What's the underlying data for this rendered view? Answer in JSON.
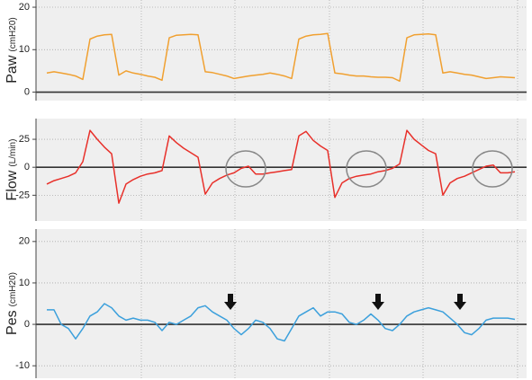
{
  "chart_data": [
    {
      "type": "line",
      "ylabel": "Paw",
      "yunit": "(cmH20)",
      "ylim": [
        -2,
        21.7
      ],
      "yticks": [
        0,
        10,
        20
      ],
      "grid": true,
      "series": [
        {
          "name": "Paw",
          "color": "#f0a030",
          "values": [
            4.5,
            4.8,
            4.5,
            4.2,
            3.8,
            3,
            12.5,
            13.2,
            13.5,
            13.6,
            4,
            5,
            4.5,
            4.2,
            3.8,
            3.5,
            2.8,
            12.8,
            13.4,
            13.5,
            13.6,
            13.5,
            4.8,
            4.6,
            4.2,
            3.8,
            3.2,
            3.5,
            3.8,
            4,
            4.2,
            4.5,
            4.2,
            3.8,
            3.2,
            12.5,
            13.2,
            13.5,
            13.6,
            13.8,
            4.5,
            4.3,
            4,
            3.8,
            3.8,
            3.6,
            3.5,
            3.5,
            3.4,
            2.6,
            12.8,
            13.5,
            13.6,
            13.7,
            13.5,
            4.5,
            4.8,
            4.5,
            4.2,
            4,
            3.6,
            3.2,
            3.4,
            3.6,
            3.5,
            3.4
          ]
        }
      ]
    },
    {
      "type": "line",
      "ylabel": "Flow",
      "yunit": "(L/min)",
      "ylim": [
        -48,
        43.5
      ],
      "yticks": [
        -25,
        0,
        25
      ],
      "grid": true,
      "series": [
        {
          "name": "Flow",
          "color": "#e8302a",
          "values": [
            -15,
            -12,
            -10,
            -8,
            -5,
            5,
            33,
            25,
            18,
            12,
            -32,
            -15,
            -11,
            -8,
            -6,
            -5,
            -3,
            28,
            22,
            17,
            13,
            9,
            -24,
            -14,
            -10,
            -7,
            -5,
            -1,
            1,
            -6,
            -6,
            -5,
            -4,
            -3,
            -2,
            28,
            32,
            24,
            19,
            15,
            -27,
            -14,
            -10,
            -8,
            -7,
            -6,
            -4,
            -3,
            -1,
            3,
            33,
            25,
            20,
            15,
            12,
            -25,
            -14,
            -10,
            -8,
            -5,
            -2,
            1,
            2,
            -5,
            -5,
            -4
          ]
        }
      ]
    },
    {
      "type": "line",
      "ylabel": "Pes",
      "yunit": "(cmH20)",
      "ylim": [
        -13,
        23
      ],
      "yticks": [
        -10,
        0,
        10,
        20
      ],
      "grid": true,
      "series": [
        {
          "name": "Pes",
          "color": "#3ca0dc",
          "values": [
            3.5,
            3.5,
            0,
            -1,
            -3.5,
            -1,
            2,
            3,
            5,
            4,
            2,
            1,
            1.5,
            1,
            1,
            0.5,
            -1.5,
            0.5,
            0,
            1,
            2,
            4,
            4.5,
            3,
            2,
            1,
            -1,
            -2.5,
            -1,
            1,
            0.5,
            -1,
            -3.5,
            -4,
            -1,
            2,
            3,
            4,
            2,
            3,
            3,
            2.5,
            0.5,
            0,
            1,
            2.5,
            1,
            -1,
            -1.5,
            0,
            2,
            3,
            3.5,
            4,
            3.5,
            3,
            1.5,
            0,
            -2,
            -2.5,
            -1,
            1,
            1.5,
            1.5,
            1.5,
            1.2
          ]
        }
      ]
    }
  ]
}
